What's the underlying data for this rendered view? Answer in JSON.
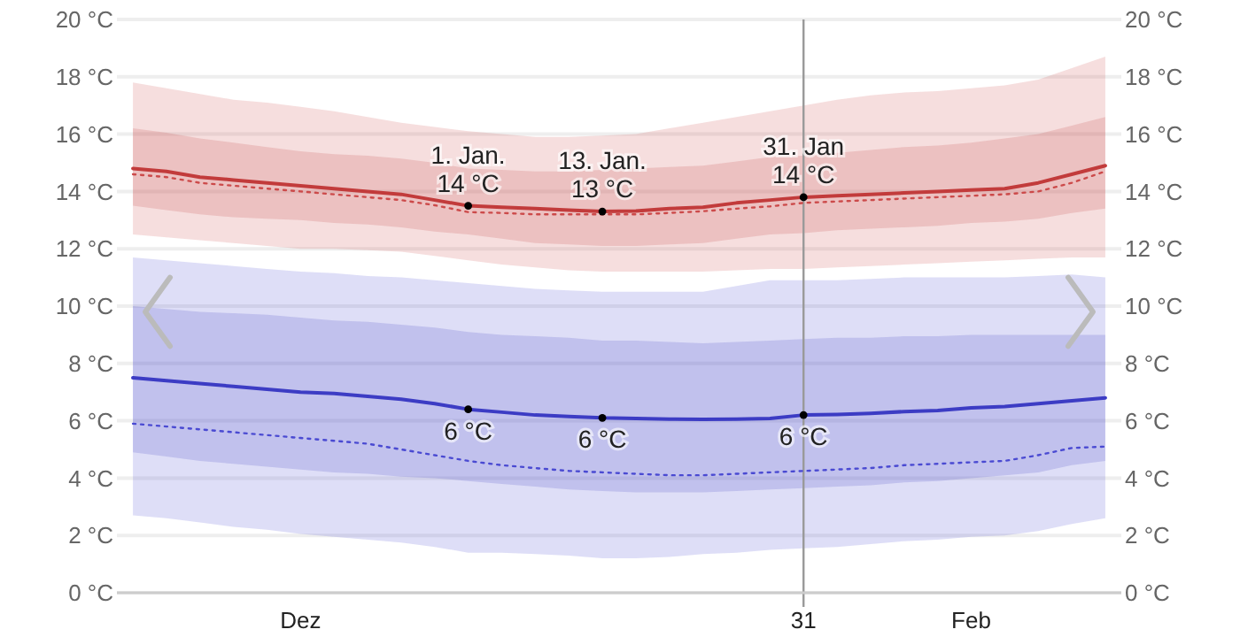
{
  "chart_data": {
    "type": "line",
    "categories": [
      null,
      null,
      null,
      null,
      null,
      "Dez",
      null,
      null,
      null,
      null,
      null,
      null,
      null,
      null,
      null,
      null,
      null,
      null,
      null,
      null,
      "31",
      null,
      null,
      null,
      null,
      "Feb",
      null,
      null,
      null,
      null
    ],
    "series": [
      {
        "color": "#cc4a4a",
        "line_style": "dotted",
        "lower": [
          12.5,
          12.4,
          12.3,
          12.2,
          12.1,
          12.0,
          12.0,
          11.95,
          11.9,
          11.75,
          11.6,
          11.45,
          11.35,
          11.25,
          11.2,
          11.2,
          11.2,
          11.2,
          11.25,
          11.3,
          11.3,
          11.35,
          11.4,
          11.45,
          11.5,
          11.55,
          11.6,
          11.65,
          11.7,
          11.7
        ],
        "upper": [
          17.8,
          17.6,
          17.4,
          17.2,
          17.1,
          16.95,
          16.8,
          16.6,
          16.4,
          16.25,
          16.1,
          16.0,
          15.9,
          15.9,
          15.95,
          16.0,
          16.2,
          16.4,
          16.6,
          16.8,
          17.0,
          17.2,
          17.35,
          17.45,
          17.5,
          17.6,
          17.7,
          17.9,
          18.3,
          18.7
        ],
        "values": [
          14.6,
          14.5,
          14.3,
          14.2,
          14.1,
          14.0,
          13.9,
          13.8,
          13.7,
          13.52,
          13.28,
          13.25,
          13.2,
          13.2,
          13.2,
          13.2,
          13.25,
          13.31,
          13.4,
          13.48,
          13.6,
          13.65,
          13.7,
          13.75,
          13.8,
          13.85,
          13.9,
          14.0,
          14.3,
          14.7
        ]
      },
      {
        "color": "#c23b3b",
        "line_style": "solid",
        "lower": [
          13.5,
          13.35,
          13.2,
          13.1,
          13.05,
          13.0,
          12.9,
          12.85,
          12.75,
          12.6,
          12.5,
          12.35,
          12.2,
          12.15,
          12.1,
          12.1,
          12.15,
          12.2,
          12.35,
          12.5,
          12.55,
          12.65,
          12.7,
          12.75,
          12.8,
          12.9,
          12.95,
          13.05,
          13.25,
          13.4
        ],
        "upper": [
          16.2,
          16.05,
          15.85,
          15.7,
          15.55,
          15.4,
          15.3,
          15.25,
          15.15,
          15.0,
          14.8,
          14.75,
          14.7,
          14.7,
          14.75,
          14.8,
          14.85,
          14.9,
          15.05,
          15.2,
          15.25,
          15.35,
          15.45,
          15.55,
          15.6,
          15.7,
          15.85,
          16.0,
          16.3,
          16.6
        ],
        "values": [
          14.8,
          14.7,
          14.5,
          14.4,
          14.3,
          14.2,
          14.1,
          14.0,
          13.9,
          13.7,
          13.5,
          13.45,
          13.4,
          13.35,
          13.3,
          13.32,
          13.4,
          13.45,
          13.6,
          13.7,
          13.8,
          13.85,
          13.9,
          13.95,
          14.0,
          14.05,
          14.1,
          14.3,
          14.6,
          14.9
        ]
      },
      {
        "color": "#4a4ad2",
        "line_style": "dotted",
        "lower": [
          2.7,
          2.6,
          2.45,
          2.3,
          2.2,
          2.05,
          1.95,
          1.85,
          1.75,
          1.6,
          1.4,
          1.4,
          1.35,
          1.3,
          1.2,
          1.2,
          1.25,
          1.35,
          1.4,
          1.5,
          1.55,
          1.6,
          1.7,
          1.8,
          1.85,
          1.95,
          2.0,
          2.15,
          2.4,
          2.6
        ],
        "upper": [
          11.7,
          11.6,
          11.5,
          11.4,
          11.3,
          11.2,
          11.15,
          11.05,
          11.0,
          10.9,
          10.8,
          10.7,
          10.6,
          10.55,
          10.5,
          10.5,
          10.5,
          10.5,
          10.7,
          10.9,
          10.9,
          10.9,
          10.95,
          11.0,
          11.0,
          11.0,
          11.0,
          11.05,
          11.1,
          11.0
        ],
        "values": [
          5.9,
          5.8,
          5.7,
          5.6,
          5.5,
          5.4,
          5.3,
          5.2,
          5.0,
          4.8,
          4.6,
          4.45,
          4.35,
          4.25,
          4.2,
          4.15,
          4.1,
          4.1,
          4.15,
          4.2,
          4.25,
          4.3,
          4.35,
          4.45,
          4.5,
          4.55,
          4.6,
          4.8,
          5.05,
          5.1
        ]
      },
      {
        "color": "#3c3cc4",
        "line_style": "solid",
        "lower": [
          4.9,
          4.75,
          4.6,
          4.5,
          4.4,
          4.3,
          4.2,
          4.15,
          4.05,
          4.0,
          3.9,
          3.8,
          3.7,
          3.6,
          3.55,
          3.5,
          3.5,
          3.5,
          3.55,
          3.6,
          3.65,
          3.7,
          3.75,
          3.85,
          3.9,
          4.0,
          4.1,
          4.2,
          4.45,
          4.6
        ],
        "upper": [
          10.0,
          9.9,
          9.8,
          9.75,
          9.7,
          9.6,
          9.5,
          9.45,
          9.35,
          9.25,
          9.1,
          9.0,
          8.95,
          8.9,
          8.8,
          8.8,
          8.75,
          8.7,
          8.75,
          8.8,
          8.85,
          8.9,
          8.9,
          8.95,
          8.95,
          9.0,
          9.0,
          9.0,
          9.0,
          9.0
        ],
        "values": [
          7.5,
          7.4,
          7.3,
          7.2,
          7.1,
          7.0,
          6.95,
          6.85,
          6.75,
          6.6,
          6.4,
          6.3,
          6.2,
          6.15,
          6.1,
          6.08,
          6.06,
          6.05,
          6.06,
          6.08,
          6.2,
          6.22,
          6.26,
          6.32,
          6.36,
          6.45,
          6.5,
          6.6,
          6.7,
          6.8
        ]
      }
    ],
    "ylim": [
      0,
      20
    ],
    "yticks": [
      {
        "value": 0,
        "label": "0 °C"
      },
      {
        "value": 2,
        "label": "2 °C"
      },
      {
        "value": 4,
        "label": "4 °C"
      },
      {
        "value": 6,
        "label": "6 °C"
      },
      {
        "value": 8,
        "label": "8 °C"
      },
      {
        "value": 10,
        "label": "10 °C"
      },
      {
        "value": 12,
        "label": "12 °C"
      },
      {
        "value": 14,
        "label": "14 °C"
      },
      {
        "value": 16,
        "label": "16 °C"
      },
      {
        "value": 18,
        "label": "18 °C"
      },
      {
        "value": 20,
        "label": "20 °C"
      }
    ],
    "y2lim": [
      0,
      20
    ],
    "y2ticks": [
      {
        "value": 0,
        "label": "0 °C"
      },
      {
        "value": 2,
        "label": "2 °C"
      },
      {
        "value": 4,
        "label": "4 °C"
      },
      {
        "value": 6,
        "label": "6 °C"
      },
      {
        "value": 8,
        "label": "8 °C"
      },
      {
        "value": 10,
        "label": "10 °C"
      },
      {
        "value": 12,
        "label": "12 °C"
      },
      {
        "value": 14,
        "label": "14 °C"
      },
      {
        "value": 16,
        "label": "16 °C"
      },
      {
        "value": 18,
        "label": "18 °C"
      },
      {
        "value": 20,
        "label": "20 °C"
      }
    ],
    "ref_lines": [
      {
        "axis": "x",
        "value": "31"
      }
    ],
    "annotations": [
      {
        "text": "1. Jan.\n14 °C",
        "y": 13.5
      },
      {
        "text": "13. Jan.\n13 °C",
        "y": 13.3
      },
      {
        "text": "31. Jan\n14 °C",
        "x": "31",
        "y": 13.8
      },
      {
        "text": "6 °C",
        "y": 6.4
      },
      {
        "text": "6 °C",
        "y": 6.1
      },
      {
        "text": "6 °C",
        "x": "31",
        "y": 6.2
      }
    ],
    "grid": "y"
  }
}
